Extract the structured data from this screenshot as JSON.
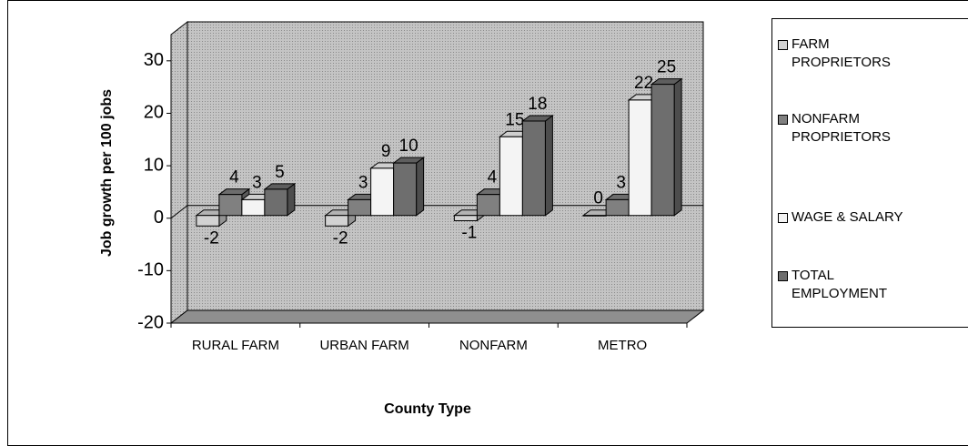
{
  "chart_data": {
    "type": "bar3d",
    "categories": [
      "RURAL FARM",
      "URBAN FARM",
      "NONFARM",
      "METRO"
    ],
    "series": [
      {
        "name": "FARM PROPRIETORS",
        "color": "#d2d2d2",
        "values": [
          -2,
          -2,
          -1,
          0
        ]
      },
      {
        "name": "NONFARM PROPRIETORS",
        "color": "#808080",
        "values": [
          4,
          3,
          4,
          3
        ]
      },
      {
        "name": "WAGE & SALARY",
        "color": "#f4f4f4",
        "values": [
          3,
          9,
          15,
          22
        ]
      },
      {
        "name": "TOTAL EMPLOYMENT",
        "color": "#6e6e6e",
        "values": [
          5,
          10,
          18,
          25
        ]
      }
    ],
    "xlabel": "County Type",
    "ylabel": "Job growth per 100 jobs",
    "ylim": [
      -20,
      35
    ],
    "yticks": [
      -20,
      -10,
      0,
      10,
      20,
      30
    ],
    "legend": "right"
  }
}
